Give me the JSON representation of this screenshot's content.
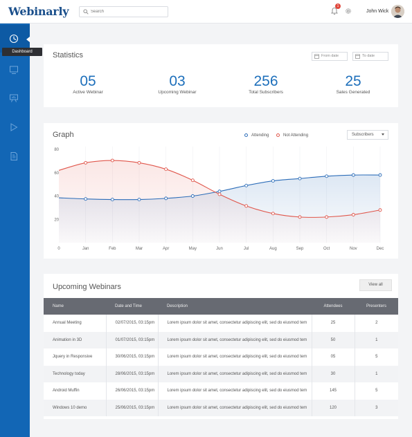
{
  "app": {
    "logo_text": "Webinarly",
    "brand_color": "#1266b5",
    "accent_color": "#1d6fbb"
  },
  "header": {
    "search_placeholder": "Search",
    "notification_count": "1",
    "user_name": "John Wick"
  },
  "sidebar": {
    "items": [
      {
        "icon": "dashboard-icon",
        "label": "Dashboard",
        "active": true
      },
      {
        "icon": "monitor-icon"
      },
      {
        "icon": "presentation-icon"
      },
      {
        "icon": "play-icon"
      },
      {
        "icon": "document-icon"
      }
    ],
    "tooltip": "Dashboard"
  },
  "stats": {
    "title": "Statistics",
    "from_date": "From date",
    "to_date": "To date",
    "items": [
      {
        "value": "05",
        "label": "Active Webinar"
      },
      {
        "value": "03",
        "label": "Upcoming Webinar"
      },
      {
        "value": "256",
        "label": "Total Subscribers"
      },
      {
        "value": "25",
        "label": "Sales Generated"
      }
    ]
  },
  "graph": {
    "title": "Graph",
    "select_value": "Subscribers",
    "legend_attending": "Attending",
    "legend_not_attending": "Not Attending"
  },
  "chart_data": {
    "type": "line",
    "x": [
      "0",
      "Jan",
      "Feb",
      "Mar",
      "Apr",
      "May",
      "Jun",
      "Jul",
      "Aug",
      "Sep",
      "Oct",
      "Nov",
      "Dec"
    ],
    "ylim": [
      0,
      80
    ],
    "yticks": [
      "80",
      "60",
      "40",
      "20"
    ],
    "grid": false,
    "legend": "top-right",
    "series": [
      {
        "name": "Attending",
        "color": "#2b6cb8",
        "values": [
          38.5,
          37.5,
          37,
          37,
          38,
          40,
          44,
          49,
          53,
          55,
          57,
          58,
          58
        ]
      },
      {
        "name": "Not Attending",
        "color": "#e0554a",
        "values": [
          62,
          68.5,
          70.5,
          68.5,
          63,
          53.5,
          41.5,
          31.5,
          25,
          22,
          22,
          24,
          28
        ]
      }
    ]
  },
  "webinars": {
    "title": "Upcoming Webinars",
    "view_all": "View all",
    "columns": [
      "Name",
      "Date and Time",
      "Description",
      "Attendees",
      "Presenters"
    ],
    "rows": [
      [
        "Annual Meeting",
        "02/07/2015, 03:15pm",
        "Lorem ipsum dolor sit amet, consectetur adipiscing elit, sed do eiusmod tem",
        "25",
        "2"
      ],
      [
        "Animation in 3D",
        "01/07/2015, 03:15pm",
        "Lorem ipsum dolor sit amet, consectetur adipiscing elit, sed do eiusmod tem",
        "50",
        "1"
      ],
      [
        "Jquery in Responsive",
        "30/06/2015, 03:15pm",
        "Lorem ipsum dolor sit amet, consectetur adipiscing elit, sed do eiusmod tem",
        "05",
        "5"
      ],
      [
        "Technology today",
        "28/06/2015, 03:15pm",
        "Lorem ipsum dolor sit amet, consectetur adipiscing elit, sed do eiusmod tem",
        "30",
        "1"
      ],
      [
        "Android Muffin",
        "26/06/2015, 03:15pm",
        "Lorem ipsum dolor sit amet, consectetur adipiscing elit, sed do eiusmod tem",
        "145",
        "5"
      ],
      [
        "Windows 10 demo",
        "25/06/2015, 03:15pm",
        "Lorem ipsum dolor sit amet, consectetur adipiscing elit, sed do eiusmod tem",
        "120",
        "3"
      ]
    ]
  }
}
